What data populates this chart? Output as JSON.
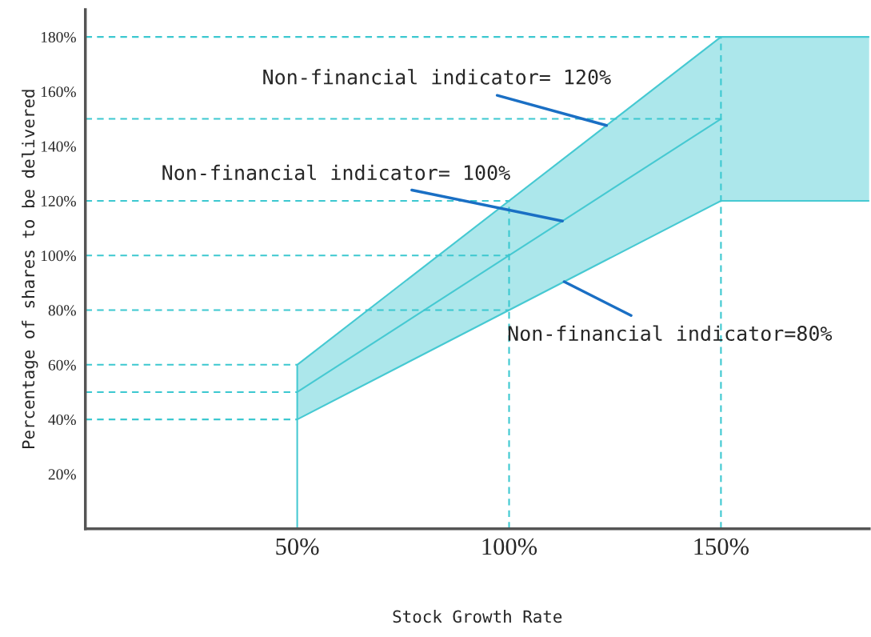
{
  "chart_data": {
    "type": "line",
    "xlabel": "Stock Growth Rate",
    "ylabel": "Percentage of shares to be delivered",
    "series": [
      {
        "color": "#46c9d2",
        "x": [
          50,
          50,
          150,
          185
        ],
        "values": [
          0,
          60,
          180,
          180
        ]
      },
      {
        "color": "#46c9d2",
        "x": [
          50,
          100,
          150,
          185
        ],
        "values": [
          50,
          100,
          150,
          null
        ],
        "lower": [
          40,
          80,
          120,
          120
        ],
        "upper": [
          60,
          120,
          180,
          180
        ]
      },
      {
        "color": "#46c9d2",
        "x": [
          50,
          150,
          185
        ],
        "values": [
          40,
          120,
          120
        ]
      }
    ],
    "xlim": [
      0,
      185
    ],
    "ylim": [
      0,
      190
    ],
    "xticks": [
      {
        "value": 50,
        "label": "50%"
      },
      {
        "value": 100,
        "label": "100%"
      },
      {
        "value": 150,
        "label": "150%"
      }
    ],
    "yticks": [
      {
        "value": 20,
        "label": "20%"
      },
      {
        "value": 40,
        "label": "40%"
      },
      {
        "value": 60,
        "label": "60%"
      },
      {
        "value": 80,
        "label": "80%"
      },
      {
        "value": 100,
        "label": "100%"
      },
      {
        "value": 120,
        "label": "120%"
      },
      {
        "value": 140,
        "label": "140%"
      },
      {
        "value": 160,
        "label": "160%"
      },
      {
        "value": 180,
        "label": "180%"
      }
    ],
    "ref_lines": [
      {
        "axis": "y",
        "value": 40,
        "color": "#3cc8d0",
        "line_style": "dashed"
      },
      {
        "axis": "y",
        "value": 50,
        "color": "#3cc8d0",
        "line_style": "dashed"
      },
      {
        "axis": "y",
        "value": 60,
        "color": "#3cc8d0",
        "line_style": "dashed"
      },
      {
        "axis": "y",
        "value": 80,
        "color": "#3cc8d0",
        "line_style": "dashed"
      },
      {
        "axis": "y",
        "value": 100,
        "color": "#3cc8d0",
        "line_style": "dashed"
      },
      {
        "axis": "y",
        "value": 120,
        "color": "#3cc8d0",
        "line_style": "dashed"
      },
      {
        "axis": "y",
        "value": 150,
        "color": "#3cc8d0",
        "line_style": "dashed"
      },
      {
        "axis": "y",
        "value": 180,
        "color": "#3cc8d0",
        "line_style": "dashed"
      },
      {
        "axis": "x",
        "value": 100,
        "color": "#3cc8d0",
        "line_style": "dashed"
      },
      {
        "axis": "x",
        "value": 150,
        "color": "#3cc8d0",
        "line_style": "dashed"
      }
    ],
    "annotations": [
      {
        "text": "Non-financial indicator= 120%",
        "x": 123,
        "y": 147.6
      },
      {
        "text": "Non-financial indicator= 100%",
        "x": 112.6,
        "y": 112.6
      },
      {
        "text": "Non-financial indicator=80%",
        "x": 113,
        "y": 90.4
      }
    ],
    "grid": false,
    "legend": false
  }
}
